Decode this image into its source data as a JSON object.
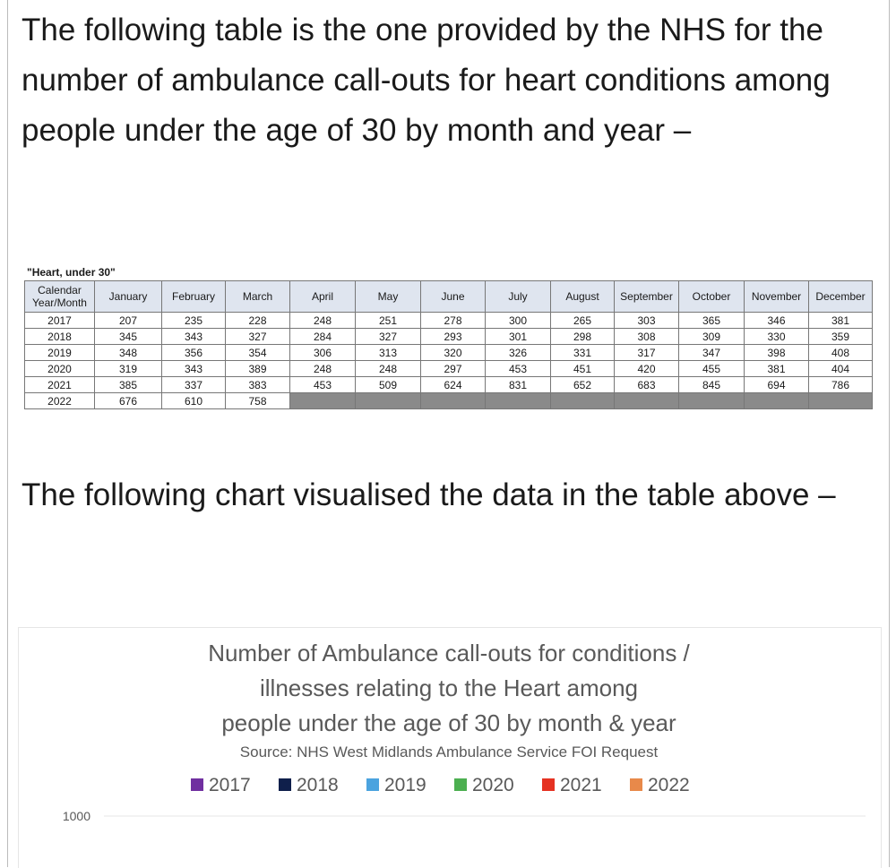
{
  "paragraphs": [
    "The following table is the one provided by the NHS for the number of ambulance call-outs for heart conditions among people under the age of 30 by month and year –",
    "The following chart visualised the data in the table above –"
  ],
  "table": {
    "caption": "\"Heart, under 30\"",
    "header": [
      "Calendar Year/Month",
      "January",
      "February",
      "March",
      "April",
      "May",
      "June",
      "July",
      "August",
      "September",
      "October",
      "November",
      "December"
    ],
    "rows": [
      [
        "2017",
        207,
        235,
        228,
        248,
        251,
        278,
        300,
        265,
        303,
        365,
        346,
        381
      ],
      [
        "2018",
        345,
        343,
        327,
        284,
        327,
        293,
        301,
        298,
        308,
        309,
        330,
        359
      ],
      [
        "2019",
        348,
        356,
        354,
        306,
        313,
        320,
        326,
        331,
        317,
        347,
        398,
        408
      ],
      [
        "2020",
        319,
        343,
        389,
        248,
        248,
        297,
        453,
        451,
        420,
        455,
        381,
        404
      ],
      [
        "2021",
        385,
        337,
        383,
        453,
        509,
        624,
        831,
        652,
        683,
        845,
        694,
        786
      ],
      [
        "2022",
        676,
        610,
        758
      ]
    ]
  },
  "chart": {
    "type": "bar",
    "title": [
      "Number of Ambulance call-outs for conditions /",
      "illnesses relating to the Heart among",
      "people under the age of 30 by month & year"
    ],
    "subtitle": "Source: NHS West Midlands Ambulance Service FOI Request",
    "series": [
      {
        "name": "2017",
        "color": "#7030a0"
      },
      {
        "name": "2018",
        "color": "#0f1f4b"
      },
      {
        "name": "2019",
        "color": "#4ba3df"
      },
      {
        "name": "2020",
        "color": "#4caf50"
      },
      {
        "name": "2021",
        "color": "#e53222"
      },
      {
        "name": "2022",
        "color": "#e8894a"
      }
    ],
    "yticks": [
      1000
    ],
    "grid": true
  }
}
